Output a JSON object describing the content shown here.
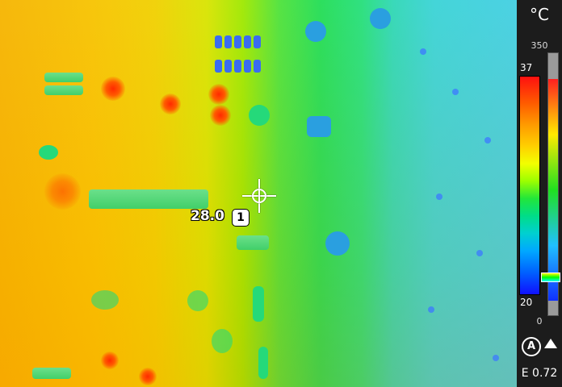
{
  "spot": {
    "value": "28.0",
    "label": "1"
  },
  "scale": {
    "unit": "°C",
    "range_max": "350",
    "range_min": "0",
    "palette_max": "37",
    "palette_min": "20"
  },
  "status": {
    "emissivity": "E 0.72"
  },
  "icons": {
    "crosshair": "crosshair-icon",
    "auto": "auto-range-icon",
    "arrow": "arrow-up-icon"
  }
}
